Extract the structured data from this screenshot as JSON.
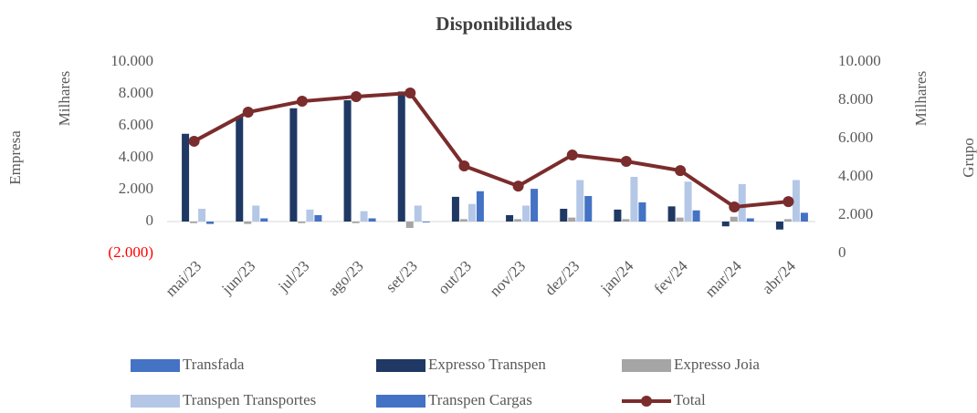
{
  "chart_data": {
    "type": "bar",
    "title": "Disponibilidades",
    "y_label": "Empresa",
    "y_unit_label": "Milhares",
    "y2_label": "Grupo",
    "y2_unit_label": "Milhares",
    "categories": [
      "mai/23",
      "jun/23",
      "jul/23",
      "ago/23",
      "set/23",
      "out/23",
      "nov/23",
      "dez/23",
      "jan/24",
      "fev/24",
      "mar/24",
      "abr/24"
    ],
    "series": [
      {
        "name": "Transfada",
        "type": "bar",
        "color": "#4472c4",
        "values": [
          0,
          0,
          0,
          0,
          0,
          0,
          0,
          0,
          0,
          0,
          0,
          0
        ]
      },
      {
        "name": "Expresso Transpen",
        "type": "bar",
        "color": "#1f3864",
        "values": [
          5500,
          6600,
          7100,
          7600,
          8150,
          1550,
          400,
          800,
          750,
          950,
          -300,
          -500
        ]
      },
      {
        "name": "Expresso Joia",
        "type": "bar",
        "color": "#a5a5a5",
        "values": [
          -100,
          -150,
          -100,
          -100,
          -400,
          150,
          150,
          250,
          150,
          250,
          300,
          150
        ]
      },
      {
        "name": "Transpen Transportes",
        "type": "bar",
        "color": "#b4c7e7",
        "values": [
          800,
          1000,
          750,
          650,
          1000,
          1100,
          1000,
          2600,
          2800,
          2500,
          2350,
          2600
        ]
      },
      {
        "name": "Transpen Cargas",
        "type": "bar",
        "color": "#4472c4",
        "values": [
          -150,
          200,
          400,
          200,
          -50,
          1900,
          2050,
          1600,
          1200,
          700,
          200,
          550
        ]
      },
      {
        "name": "Total",
        "type": "line",
        "axis": "y2",
        "color": "#7b2c2c",
        "values": [
          5860,
          7380,
          7950,
          8190,
          8380,
          4570,
          3520,
          5140,
          4810,
          4330,
          2430,
          2710
        ]
      }
    ],
    "ylim": [
      -2000,
      10000
    ],
    "yticks": [
      {
        "value": -2000,
        "label": "(2.000)"
      },
      0,
      {
        "value": 2000,
        "label": "2.000"
      },
      {
        "value": 4000,
        "label": "4.000"
      },
      {
        "value": 6000,
        "label": "6.000"
      },
      {
        "value": 8000,
        "label": "8.000"
      },
      {
        "value": 10000,
        "label": "10.000"
      }
    ],
    "y2lim": [
      0,
      10000
    ],
    "y2ticks": [
      0,
      {
        "value": 2000,
        "label": "2.000"
      },
      {
        "value": 4000,
        "label": "4.000"
      },
      {
        "value": 6000,
        "label": "6.000"
      },
      {
        "value": 8000,
        "label": "8.000"
      },
      {
        "value": 10000,
        "label": "10.000"
      }
    ],
    "negative_label_color": "#ff0000",
    "grid": false
  }
}
